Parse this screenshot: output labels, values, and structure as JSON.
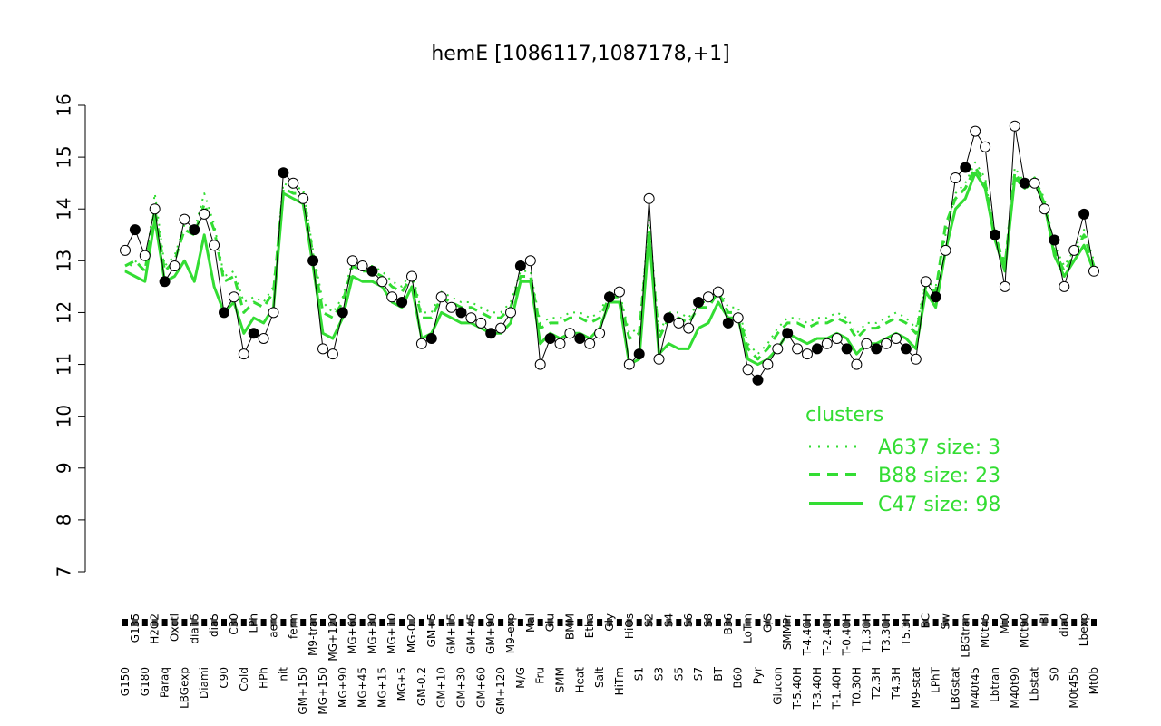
{
  "chart_data": {
    "type": "line",
    "title": "hemE [1086117,1087178,+1]",
    "xlabel": "",
    "ylabel": "",
    "ylim": [
      7,
      16
    ],
    "yticks": [
      7,
      8,
      9,
      10,
      11,
      12,
      13,
      14,
      15,
      16
    ],
    "xtick_labels": [
      "G150",
      "G135",
      "G180",
      "H2O2",
      "Paraq",
      "Oxctl",
      "LBGexp",
      "dia15",
      "Diami",
      "dia5",
      "C90",
      "C30",
      "Cold",
      "LPh",
      "HPh",
      "aero",
      "nit",
      "ferm",
      "GM+150",
      "M9-tran",
      "MG+150",
      "MG+120",
      "MG+90",
      "MG+60",
      "MG+45",
      "MG+30",
      "MG+15",
      "MG+10",
      "MG+5",
      "MG-0.2",
      "GM-0.2",
      "GM+5",
      "GM+10",
      "GM+15",
      "GM+30",
      "GM+45",
      "GM+60",
      "GM+90",
      "GM+120",
      "M9-exp",
      "M/G",
      "Mal",
      "Fru",
      "Glu",
      "SMM",
      "BMM",
      "Heat",
      "Etha",
      "Salt",
      "Gly",
      "HiTm",
      "HiOs",
      "S1",
      "S2",
      "S3",
      "S4",
      "S5",
      "S6",
      "S7",
      "S8",
      "BT",
      "B36",
      "B60",
      "LoTm",
      "Pyr",
      "G/S",
      "Glucon",
      "SMMPr",
      "T-5.40H",
      "T-4.40H",
      "T-3.40H",
      "T-2.40H",
      "T-1.40H",
      "T-0.40H",
      "T0.30H",
      "T1.30H",
      "T2.3H",
      "T3.30H",
      "T4.3H",
      "T5.3H",
      "M9-stat",
      "BC",
      "LPhT",
      "Sw",
      "LBGstat",
      "LBGtran",
      "M40t45",
      "M0t45",
      "Lbtran",
      "Mt0",
      "M40t90",
      "M0t90",
      "Lbstat",
      "BI",
      "S0",
      "dia0",
      "M0t45b",
      "Lbexp",
      "Mt0b"
    ],
    "series": [
      {
        "name": "profile",
        "style": "black line with open and filled circles",
        "values": [
          13.2,
          13.6,
          13.1,
          14.0,
          12.6,
          12.9,
          13.8,
          13.6,
          13.9,
          13.3,
          12.0,
          12.3,
          11.2,
          11.6,
          11.5,
          12.0,
          14.7,
          14.5,
          14.2,
          13.0,
          11.3,
          11.2,
          12.0,
          13.0,
          12.9,
          12.8,
          12.6,
          12.3,
          12.2,
          12.7,
          11.4,
          11.5,
          12.3,
          12.1,
          12.0,
          11.9,
          11.8,
          11.6,
          11.7,
          12.0,
          12.9,
          13.0,
          11.0,
          11.5,
          11.4,
          11.6,
          11.5,
          11.4,
          11.6,
          12.3,
          12.4,
          11.0,
          11.2,
          14.2,
          11.1,
          11.9,
          11.8,
          11.7,
          12.2,
          12.3,
          12.4,
          11.8,
          11.9,
          10.9,
          10.7,
          11.0,
          11.3,
          11.6,
          11.3,
          11.2,
          11.3,
          11.4,
          11.5,
          11.3,
          11.0,
          11.4,
          11.3,
          11.4,
          11.5,
          11.3,
          11.1,
          12.6,
          12.3,
          13.2,
          14.6,
          14.8,
          15.5,
          15.2,
          13.5,
          12.5,
          15.6,
          14.5,
          14.5,
          14.0,
          13.4,
          12.5,
          13.2,
          13.9,
          12.8
        ]
      }
    ],
    "clusters": [
      {
        "name": "A637 size: 3",
        "style": "dotted",
        "color": "#33dd33",
        "values": [
          12.8,
          13.0,
          12.8,
          14.3,
          12.9,
          13.1,
          13.7,
          13.6,
          14.3,
          13.7,
          12.7,
          12.8,
          12.2,
          12.3,
          12.2,
          12.5,
          14.5,
          14.4,
          14.4,
          13.2,
          12.2,
          12.0,
          12.3,
          13.0,
          12.9,
          12.9,
          12.8,
          12.6,
          12.5,
          12.8,
          12.0,
          12.0,
          12.4,
          12.3,
          12.2,
          12.2,
          12.1,
          12.0,
          12.0,
          12.2,
          12.8,
          12.8,
          11.8,
          11.9,
          11.9,
          12.0,
          12.0,
          11.9,
          12.0,
          12.4,
          12.4,
          11.6,
          11.7,
          13.8,
          11.6,
          12.0,
          12.0,
          11.9,
          12.2,
          12.2,
          12.5,
          12.1,
          12.1,
          11.4,
          11.2,
          11.4,
          11.7,
          11.9,
          11.9,
          11.8,
          11.9,
          11.9,
          12.0,
          11.9,
          11.6,
          11.8,
          11.8,
          11.9,
          12.0,
          11.9,
          11.7,
          12.6,
          12.5,
          13.5,
          14.3,
          14.5,
          14.9,
          14.6,
          13.4,
          13.0,
          14.8,
          14.5,
          14.6,
          14.2,
          13.3,
          12.9,
          13.2,
          13.6,
          13.0
        ]
      },
      {
        "name": "B88 size: 23",
        "style": "dashed",
        "color": "#33dd33",
        "values": [
          12.9,
          13.0,
          12.8,
          14.0,
          12.8,
          13.0,
          13.6,
          13.5,
          14.1,
          13.6,
          12.6,
          12.7,
          12.0,
          12.2,
          12.1,
          12.4,
          14.4,
          14.3,
          14.3,
          13.1,
          12.0,
          11.9,
          12.2,
          12.9,
          12.8,
          12.8,
          12.7,
          12.5,
          12.4,
          12.7,
          11.9,
          11.9,
          12.3,
          12.2,
          12.1,
          12.1,
          12.0,
          11.9,
          11.9,
          12.1,
          12.7,
          12.7,
          11.7,
          11.8,
          11.8,
          11.9,
          11.9,
          11.8,
          11.9,
          12.3,
          12.3,
          11.5,
          11.6,
          13.6,
          11.5,
          11.9,
          11.9,
          11.8,
          12.1,
          12.1,
          12.4,
          12.0,
          12.0,
          11.3,
          11.1,
          11.3,
          11.6,
          11.8,
          11.8,
          11.7,
          11.8,
          11.8,
          11.9,
          11.8,
          11.5,
          11.7,
          11.7,
          11.8,
          11.9,
          11.8,
          11.6,
          12.5,
          12.4,
          13.7,
          14.2,
          14.4,
          14.8,
          14.5,
          13.5,
          12.9,
          14.7,
          14.4,
          14.5,
          14.1,
          13.2,
          12.8,
          13.1,
          13.5,
          12.9
        ]
      },
      {
        "name": "C47 size: 98",
        "style": "solid",
        "color": "#33dd33",
        "values": [
          12.8,
          12.7,
          12.6,
          13.8,
          12.6,
          12.7,
          13.0,
          12.6,
          13.5,
          12.5,
          12.0,
          12.2,
          11.6,
          11.9,
          11.8,
          12.1,
          14.3,
          14.2,
          14.1,
          12.9,
          11.6,
          11.5,
          11.9,
          12.7,
          12.6,
          12.6,
          12.5,
          12.2,
          12.1,
          12.5,
          11.5,
          11.6,
          12.0,
          11.9,
          11.8,
          11.8,
          11.7,
          11.6,
          11.6,
          11.8,
          12.6,
          12.6,
          11.4,
          11.6,
          11.5,
          11.6,
          11.6,
          11.5,
          11.7,
          12.2,
          12.2,
          11.0,
          11.1,
          13.5,
          11.2,
          11.4,
          11.3,
          11.3,
          11.7,
          11.8,
          12.2,
          11.9,
          11.9,
          11.1,
          11.0,
          11.1,
          11.3,
          11.6,
          11.5,
          11.4,
          11.5,
          11.5,
          11.6,
          11.5,
          11.2,
          11.4,
          11.4,
          11.5,
          11.6,
          11.5,
          11.3,
          12.4,
          12.1,
          13.2,
          14.0,
          14.2,
          14.7,
          14.4,
          13.4,
          12.8,
          14.6,
          14.4,
          14.6,
          14.1,
          13.1,
          12.7,
          13.0,
          13.3,
          12.8
        ]
      }
    ],
    "legend": {
      "title": "clusters",
      "placement": "bottom-right",
      "entries": [
        "A637 size: 3",
        "B88 size: 23",
        "C47 size: 98"
      ]
    }
  }
}
